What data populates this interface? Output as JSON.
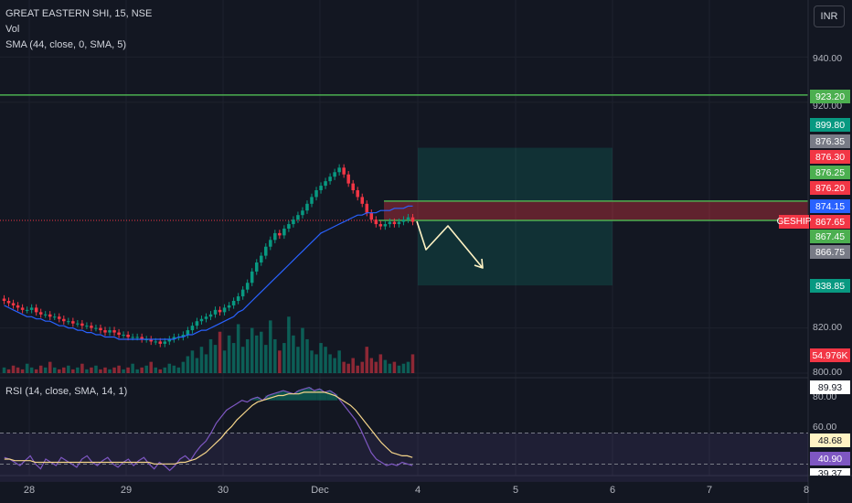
{
  "header": {
    "symbol_line": "GREAT EASTERN SHI, 15, NSE",
    "vol_label": "Vol",
    "sma_label": "SMA (44, close, 0, SMA, 5)",
    "rsi_label": "RSI (14, close, SMA, 14, 1)",
    "currency": "INR",
    "symbol_tag": "GESHIP"
  },
  "price_ticks": [
    "940.00",
    "920.00",
    "820.00",
    "800.00"
  ],
  "rsi_ticks": [
    "80.00",
    "60.00"
  ],
  "x_ticks": [
    "28",
    "29",
    "30",
    "Dec",
    "4",
    "5",
    "6",
    "7",
    "8"
  ],
  "price_badges": [
    {
      "value": "923.20",
      "color": "#4caf50"
    },
    {
      "value": "899.80",
      "color": "#089981"
    },
    {
      "value": "876.35",
      "color": "#787b86"
    },
    {
      "value": "876.30",
      "color": "#f23645"
    },
    {
      "value": "876.25",
      "color": "#4caf50"
    },
    {
      "value": "876.20",
      "color": "#f23645"
    },
    {
      "value": "874.15",
      "color": "#2962ff"
    },
    {
      "value": "867.65",
      "color": "#f23645"
    },
    {
      "value": "867.45",
      "color": "#4caf50"
    },
    {
      "value": "866.75",
      "color": "#787b86"
    },
    {
      "value": "838.85",
      "color": "#089981"
    },
    {
      "value": "54.976K",
      "color": "#f23645"
    }
  ],
  "rsi_badges": [
    {
      "value": "89.93",
      "color": "#ffffff",
      "text": "#131722"
    },
    {
      "value": "48.68",
      "color": "#fff3c4",
      "text": "#131722"
    },
    {
      "value": "40.90",
      "color": "#7e57c2",
      "text": "#ffffff"
    },
    {
      "value": "39.37",
      "color": "#ffffff",
      "text": "#131722"
    }
  ],
  "colors": {
    "up": "#089981",
    "down": "#f23645",
    "sma": "#2962ff",
    "rsi": "#7e57c2",
    "rsi_ma": "#f5d58a",
    "level": "#4caf50",
    "arrow": "#fff3c4"
  },
  "chart_data": {
    "type": "candlestick",
    "x_axis": {
      "labels": [
        "28",
        "29",
        "30",
        "Dec",
        "4",
        "5",
        "6",
        "7",
        "8"
      ]
    },
    "price_axis": {
      "ylim": [
        800,
        945
      ],
      "ticks": [
        800,
        820,
        920,
        940
      ]
    },
    "rsi_axis": {
      "ylim": [
        35,
        90
      ],
      "ticks": [
        60,
        80
      ],
      "bands": [
        30,
        60
      ]
    },
    "close_series": [
      832,
      831,
      830,
      829,
      828,
      828,
      829,
      827,
      826,
      826,
      825,
      825,
      824,
      823,
      823,
      822,
      822,
      821,
      821,
      820,
      820,
      819,
      818,
      819,
      818,
      817,
      817,
      816,
      816,
      816,
      815,
      815,
      814,
      814,
      813,
      814,
      815,
      816,
      816,
      817,
      819,
      821,
      823,
      824,
      825,
      826,
      828,
      827,
      829,
      830,
      832,
      834,
      837,
      840,
      845,
      849,
      852,
      856,
      859,
      862,
      861,
      864,
      866,
      868,
      870,
      872,
      875,
      878,
      881,
      883,
      885,
      887,
      889,
      891,
      888,
      884,
      881,
      878,
      875,
      871,
      868,
      866,
      865,
      866,
      867,
      866,
      867,
      868,
      869,
      867
    ],
    "sma_series": [
      830,
      829,
      828,
      827,
      826,
      825,
      825,
      824,
      824,
      823,
      823,
      822,
      821,
      821,
      820,
      820,
      819,
      819,
      818,
      818,
      817,
      817,
      816,
      816,
      816,
      815,
      815,
      815,
      815,
      815,
      815,
      815,
      815,
      815,
      815,
      815,
      815,
      815,
      816,
      816,
      817,
      817,
      818,
      819,
      819,
      820,
      821,
      822,
      823,
      824,
      825,
      827,
      828,
      830,
      832,
      834,
      836,
      838,
      840,
      842,
      844,
      846,
      848,
      850,
      852,
      854,
      856,
      858,
      860,
      862,
      863,
      864,
      865,
      866,
      867,
      868,
      869,
      870,
      870,
      871,
      871,
      871,
      872,
      872,
      872,
      873,
      873,
      873,
      874,
      874
    ],
    "volume_series": [
      3,
      2,
      4,
      3,
      2,
      5,
      3,
      2,
      4,
      3,
      6,
      3,
      2,
      3,
      4,
      2,
      3,
      5,
      2,
      3,
      4,
      2,
      3,
      2,
      3,
      4,
      2,
      3,
      5,
      2,
      3,
      4,
      6,
      3,
      2,
      3,
      5,
      4,
      3,
      6,
      9,
      12,
      8,
      14,
      10,
      18,
      15,
      22,
      12,
      20,
      16,
      26,
      14,
      18,
      24,
      20,
      22,
      15,
      28,
      18,
      12,
      16,
      30,
      20,
      14,
      24,
      18,
      12,
      10,
      16,
      14,
      10,
      8,
      12,
      6,
      5,
      8,
      4,
      6,
      14,
      8,
      6,
      10,
      7,
      5,
      6,
      4,
      5,
      6,
      10
    ],
    "rsi_series": [
      45,
      44,
      42,
      40,
      43,
      46,
      41,
      38,
      44,
      42,
      40,
      45,
      43,
      41,
      39,
      44,
      46,
      42,
      40,
      43,
      45,
      41,
      39,
      42,
      44,
      40,
      43,
      45,
      41,
      38,
      42,
      40,
      37,
      40,
      44,
      46,
      43,
      48,
      52,
      55,
      60,
      66,
      70,
      74,
      76,
      78,
      80,
      79,
      81,
      82,
      80,
      83,
      84,
      85,
      86,
      85,
      84,
      86,
      87,
      88,
      86,
      87,
      85,
      86,
      84,
      80,
      76,
      72,
      68,
      62,
      55,
      48,
      44,
      42,
      40,
      41,
      40,
      42,
      41,
      40
    ],
    "rsi_ma_series": [
      44,
      44,
      43,
      43,
      43,
      43,
      42,
      42,
      42,
      42,
      42,
      42,
      42,
      42,
      42,
      42,
      42,
      42,
      42,
      42,
      42,
      42,
      42,
      42,
      42,
      42,
      42,
      42,
      42,
      41,
      41,
      41,
      41,
      41,
      42,
      42,
      43,
      44,
      46,
      48,
      51,
      54,
      57,
      61,
      64,
      68,
      71,
      74,
      77,
      79,
      80,
      81,
      82,
      83,
      83,
      84,
      84,
      84,
      85,
      85,
      85,
      85,
      85,
      84,
      83,
      81,
      79,
      77,
      74,
      70,
      66,
      62,
      58,
      54,
      51,
      48,
      47,
      46,
      46,
      45
    ],
    "levels": [
      923.2,
      876.2,
      867.65
    ],
    "trade_box": {
      "entry": 867.65,
      "target": 899.8,
      "stop": 876.3,
      "low_target": 838.85,
      "x_start": "Dec",
      "x_end": "6"
    }
  }
}
